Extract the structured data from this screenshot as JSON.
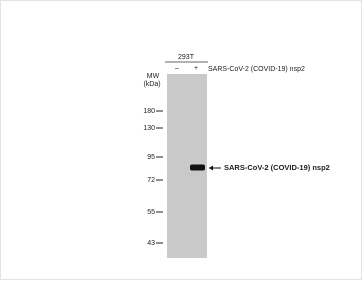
{
  "blot": {
    "cell_line": "293T",
    "lanes": [
      "–",
      "+"
    ],
    "treatment": "SARS-CoV-2 (COVID-19) nsp2",
    "mw_title": "MW",
    "mw_unit": "(kDa)",
    "markers": [
      "180",
      "130",
      "95",
      "72",
      "55",
      "43"
    ],
    "band_label": "SARS-CoV-2 (COVID-19)  nsp2"
  }
}
